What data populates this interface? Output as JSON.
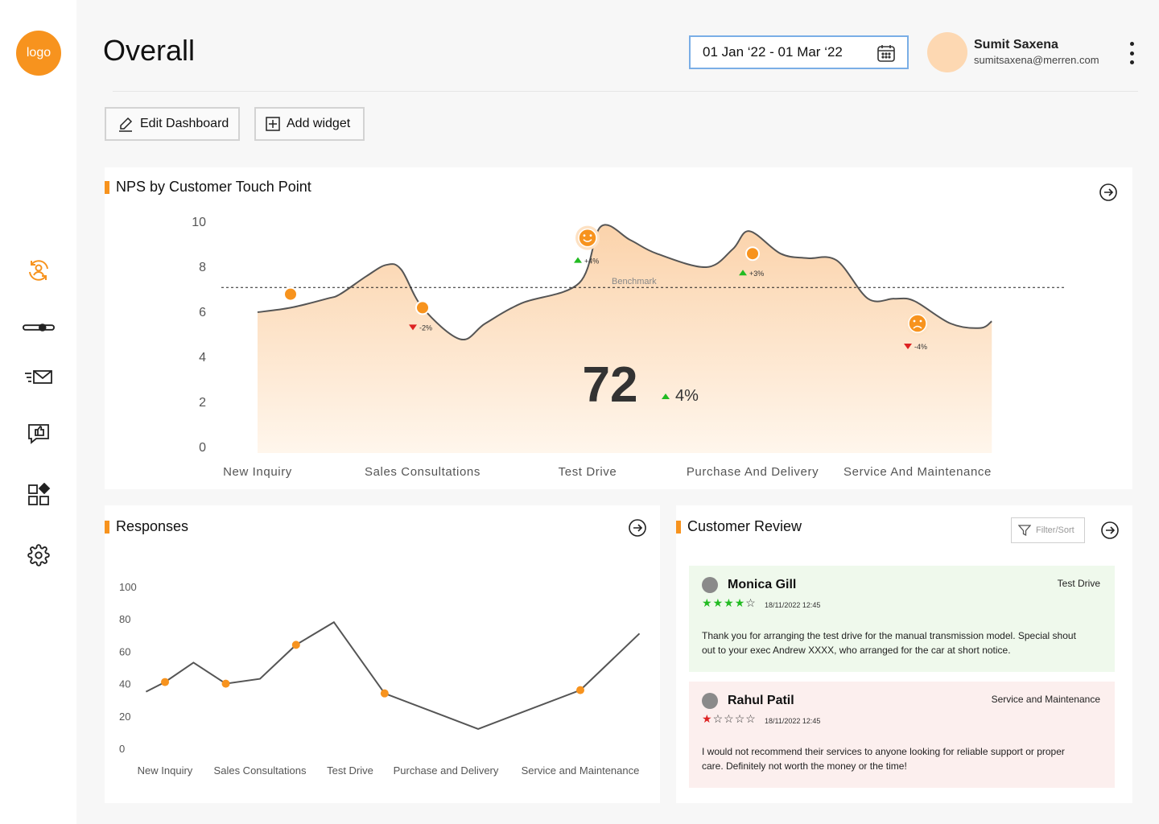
{
  "logo": {
    "text": "logo"
  },
  "header": {
    "title": "Overall",
    "date_range": "01 Jan ‘22 - 01 Mar ‘22",
    "user_name": "Sumit Saxena",
    "user_email": "sumitsaxena@merren.com"
  },
  "toolbar": {
    "edit_label": "Edit Dashboard",
    "add_label": "Add widget"
  },
  "nps": {
    "title": "NPS by Customer Touch Point",
    "score": "72",
    "change": "4%",
    "benchmark_label": "Benchmark",
    "markers": [
      "-2%",
      "+4%",
      "+3%",
      "-4%"
    ]
  },
  "responses": {
    "title": "Responses"
  },
  "reviews": {
    "title": "Customer Review",
    "filter_label": "Filter/Sort",
    "items": [
      {
        "name": "Monica Gill",
        "tag": "Test Drive",
        "date": "18/11/2022 12:45",
        "rating": 4,
        "text": "Thank you for arranging the test drive for the manual transmission model. Special shout out to your exec Andrew XXXX, who arranged for the car at short notice."
      },
      {
        "name": "Rahul Patil",
        "tag": "Service and Maintenance",
        "date": "18/11/2022 12:45",
        "rating": 1,
        "text": "I would not recommend their services to anyone looking for reliable support or proper care. Definitely not worth the money or the time!"
      }
    ]
  },
  "colors": {
    "accent": "#f7931e",
    "positive": "#22bb22",
    "negative": "#dd2222"
  },
  "chart_data": [
    {
      "type": "area",
      "title": "NPS by Customer Touch Point",
      "categories": [
        "New Inquiry",
        "Sales Consultations",
        "Test Drive",
        "Purchase And Delivery",
        "Service And Maintenance"
      ],
      "ylim": [
        0,
        10
      ],
      "yticks": [
        "0",
        "2",
        "4",
        "6",
        "8",
        "10"
      ],
      "benchmark": 7.1,
      "x": [
        0,
        0.2,
        0.42,
        0.5,
        0.66,
        0.78,
        0.87,
        1.0,
        1.23,
        1.38,
        1.6,
        1.95,
        2.08,
        2.26,
        2.42,
        2.72,
        2.88,
        2.98,
        3.17,
        3.33,
        3.51,
        3.7,
        3.86,
        3.98,
        4.2,
        4.38,
        4.45
      ],
      "y": [
        6.0,
        6.2,
        6.6,
        6.8,
        7.6,
        8.1,
        7.9,
        6.2,
        4.8,
        5.5,
        6.4,
        7.3,
        9.8,
        9.2,
        8.6,
        8.0,
        8.8,
        9.6,
        8.6,
        8.4,
        8.3,
        6.6,
        6.6,
        6.5,
        5.5,
        5.3,
        5.6
      ],
      "markers": [
        {
          "x": 0.2,
          "y": 6.8,
          "label": "",
          "face": "none"
        },
        {
          "x": 1.0,
          "y": 6.2,
          "label": "-2%",
          "face": "none"
        },
        {
          "x": 2.0,
          "y": 9.3,
          "label": "+4%",
          "face": "happy"
        },
        {
          "x": 3.0,
          "y": 8.6,
          "label": "+3%",
          "face": "none"
        },
        {
          "x": 4.0,
          "y": 5.5,
          "label": "-4%",
          "face": "sad"
        }
      ],
      "score": "72",
      "change": "4%"
    },
    {
      "type": "line",
      "title": "Responses",
      "categories": [
        "New Inquiry",
        "Sales Consultations",
        "Test Drive",
        "Purchase and Delivery",
        "Service and Maintenance"
      ],
      "ylim": [
        0,
        100
      ],
      "yticks": [
        "0",
        "20",
        "40",
        "60",
        "80",
        "100"
      ],
      "x": [
        -0.2,
        0.0,
        0.3,
        0.64,
        1.0,
        1.4,
        1.82,
        2.36,
        3.24,
        4.0,
        4.44
      ],
      "y": [
        35,
        41,
        53,
        40,
        43,
        64,
        78,
        34,
        12,
        36,
        71
      ],
      "highlight_points": [
        1,
        3,
        5,
        7,
        9
      ]
    }
  ]
}
